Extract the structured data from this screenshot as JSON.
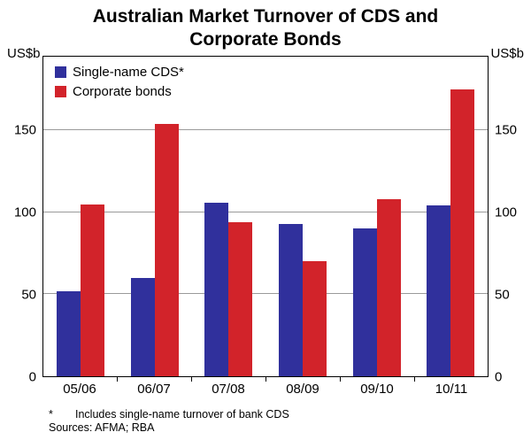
{
  "title": "Australian Market Turnover of CDS and Corporate Bonds",
  "footnote": {
    "marker": "*",
    "text": "Includes single-name turnover of bank CDS",
    "sources": "Sources: AFMA; RBA"
  },
  "chart_data": {
    "type": "bar",
    "categories": [
      "05/06",
      "06/07",
      "07/08",
      "08/09",
      "09/10",
      "10/11"
    ],
    "series": [
      {
        "name": "Single-name CDS*",
        "color": "#30309c",
        "values": [
          52,
          60,
          106,
          93,
          90,
          104
        ]
      },
      {
        "name": "Corporate bonds",
        "color": "#d2232a",
        "values": [
          105,
          154,
          94,
          70,
          108,
          175
        ]
      }
    ],
    "title": "Australian Market Turnover of CDS and Corporate Bonds",
    "xlabel": "",
    "ylabel_left": "US$b",
    "ylabel_right": "US$b",
    "yticks": [
      0,
      50,
      100,
      150
    ],
    "ylim": [
      0,
      195
    ],
    "grid": true,
    "legend_position": "top-left"
  }
}
